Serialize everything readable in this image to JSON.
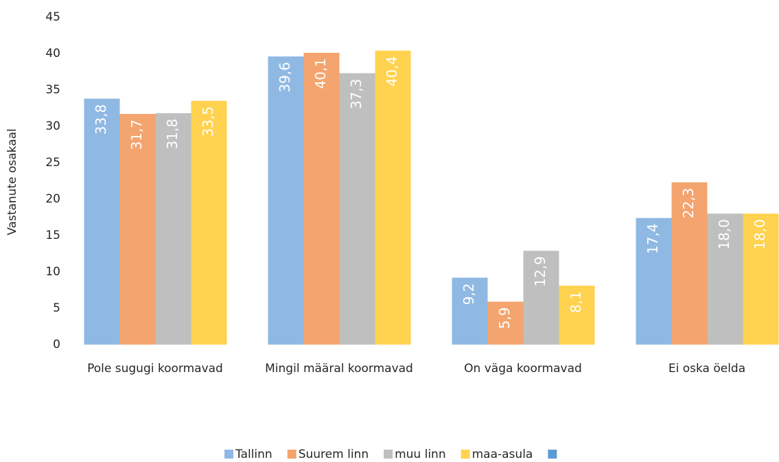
{
  "chart_data": {
    "type": "bar",
    "y_label": "Vastanute osakaal",
    "categories": [
      "Pole sugugi koormavad",
      "Mingil määral koormavad",
      "On väga koormavad",
      "Ei oska öelda"
    ],
    "series": [
      {
        "name": "Tallinn",
        "color": "#8fb9e3",
        "values": [
          33.8,
          39.6,
          9.2,
          17.4
        ],
        "value_labels": [
          "33,8",
          "39,6",
          "9,2",
          "17,4"
        ]
      },
      {
        "name": "Suurem linn",
        "color": "#f4a46e",
        "values": [
          31.7,
          40.1,
          5.9,
          22.3
        ],
        "value_labels": [
          "31,7",
          "40,1",
          "5,9",
          "22,3"
        ]
      },
      {
        "name": "muu linn",
        "color": "#bfbfbf",
        "values": [
          31.8,
          37.3,
          12.9,
          18.0
        ],
        "value_labels": [
          "31,8",
          "37,3",
          "12,9",
          "18,0"
        ]
      },
      {
        "name": "maa-asula",
        "color": "#ffd24f",
        "values": [
          33.5,
          40.4,
          8.1,
          18.0
        ],
        "value_labels": [
          "33,5",
          "40,4",
          "8,1",
          "18,0"
        ]
      }
    ],
    "ylim": [
      0,
      45
    ],
    "yticks": [
      0,
      5,
      10,
      15,
      20,
      25,
      30,
      35,
      40,
      45
    ],
    "grid": false,
    "legend": "bottom"
  }
}
